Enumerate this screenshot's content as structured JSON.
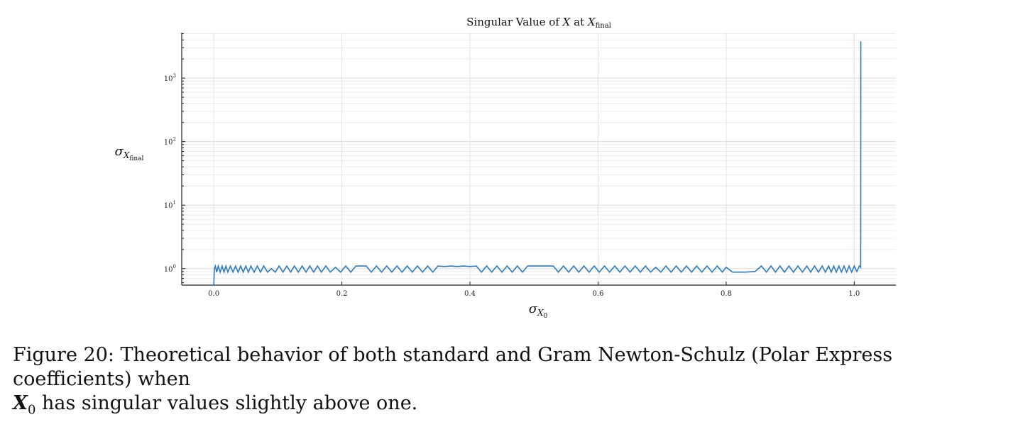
{
  "chart_data": {
    "type": "line",
    "title": {
      "prefix": "Singular Value of",
      "var": "X",
      "mid": "at",
      "var2": "X",
      "sub": "final"
    },
    "xlabel": {
      "symbol": "σ",
      "sub_var": "X",
      "sub_sub": "0"
    },
    "ylabel": {
      "symbol": "σ",
      "sub_var": "X",
      "sub_sub": "final"
    },
    "x_ticks": [
      "0.0",
      "0.2",
      "0.4",
      "0.6",
      "0.8",
      "1.0"
    ],
    "x_tick_values": [
      0.0,
      0.2,
      0.4,
      0.6,
      0.8,
      1.0
    ],
    "y_ticks": [
      {
        "base": "10",
        "exp": "0",
        "value": 1
      },
      {
        "base": "10",
        "exp": "1",
        "value": 10
      },
      {
        "base": "10",
        "exp": "2",
        "value": 100
      },
      {
        "base": "10",
        "exp": "3",
        "value": 1000
      }
    ],
    "y_scale": "log",
    "xlim": [
      -0.05,
      1.065
    ],
    "ylim": [
      0.55,
      5200
    ],
    "grid": true,
    "legend": "none",
    "color": "#2e7bbd",
    "series": [
      {
        "points": [
          [
            0.0,
            0.55
          ],
          [
            0.001,
            1.0
          ],
          [
            0.0025,
            1.1
          ],
          [
            0.0045,
            0.88
          ],
          [
            0.007,
            1.1
          ],
          [
            0.01,
            0.88
          ],
          [
            0.013,
            1.1
          ],
          [
            0.016,
            0.88
          ],
          [
            0.019,
            1.1
          ],
          [
            0.022,
            0.88
          ],
          [
            0.026,
            1.1
          ],
          [
            0.03,
            0.88
          ],
          [
            0.034,
            1.1
          ],
          [
            0.038,
            0.88
          ],
          [
            0.042,
            1.1
          ],
          [
            0.046,
            0.88
          ],
          [
            0.05,
            1.1
          ],
          [
            0.054,
            0.88
          ],
          [
            0.058,
            1.1
          ],
          [
            0.063,
            0.88
          ],
          [
            0.068,
            1.1
          ],
          [
            0.073,
            0.88
          ],
          [
            0.078,
            1.1
          ],
          [
            0.084,
            0.88
          ],
          [
            0.09,
            1.0
          ],
          [
            0.096,
            0.88
          ],
          [
            0.102,
            1.1
          ],
          [
            0.108,
            0.88
          ],
          [
            0.114,
            1.1
          ],
          [
            0.12,
            0.88
          ],
          [
            0.126,
            1.1
          ],
          [
            0.132,
            0.88
          ],
          [
            0.138,
            1.1
          ],
          [
            0.144,
            0.88
          ],
          [
            0.15,
            1.1
          ],
          [
            0.156,
            0.88
          ],
          [
            0.162,
            1.1
          ],
          [
            0.168,
            0.88
          ],
          [
            0.175,
            1.1
          ],
          [
            0.182,
            0.88
          ],
          [
            0.19,
            1.05
          ],
          [
            0.198,
            0.88
          ],
          [
            0.206,
            1.1
          ],
          [
            0.214,
            0.88
          ],
          [
            0.222,
            1.1
          ],
          [
            0.23,
            1.1
          ],
          [
            0.238,
            1.1
          ],
          [
            0.246,
            0.88
          ],
          [
            0.254,
            1.1
          ],
          [
            0.262,
            0.88
          ],
          [
            0.27,
            1.1
          ],
          [
            0.278,
            0.88
          ],
          [
            0.286,
            1.1
          ],
          [
            0.294,
            0.88
          ],
          [
            0.302,
            1.1
          ],
          [
            0.31,
            0.88
          ],
          [
            0.318,
            1.1
          ],
          [
            0.326,
            0.88
          ],
          [
            0.334,
            1.1
          ],
          [
            0.342,
            0.88
          ],
          [
            0.35,
            1.1
          ],
          [
            0.36,
            1.08
          ],
          [
            0.37,
            1.1
          ],
          [
            0.38,
            1.08
          ],
          [
            0.39,
            1.1
          ],
          [
            0.4,
            1.08
          ],
          [
            0.41,
            1.1
          ],
          [
            0.418,
            0.88
          ],
          [
            0.426,
            1.1
          ],
          [
            0.434,
            0.88
          ],
          [
            0.442,
            1.1
          ],
          [
            0.45,
            0.88
          ],
          [
            0.458,
            1.1
          ],
          [
            0.466,
            0.88
          ],
          [
            0.474,
            1.1
          ],
          [
            0.482,
            0.88
          ],
          [
            0.49,
            1.1
          ],
          [
            0.5,
            1.1
          ],
          [
            0.51,
            1.1
          ],
          [
            0.52,
            1.1
          ],
          [
            0.53,
            1.1
          ],
          [
            0.538,
            0.88
          ],
          [
            0.546,
            1.1
          ],
          [
            0.554,
            0.88
          ],
          [
            0.562,
            1.1
          ],
          [
            0.57,
            0.88
          ],
          [
            0.578,
            1.1
          ],
          [
            0.586,
            0.88
          ],
          [
            0.594,
            1.1
          ],
          [
            0.602,
            0.88
          ],
          [
            0.61,
            1.1
          ],
          [
            0.618,
            0.88
          ],
          [
            0.626,
            1.1
          ],
          [
            0.634,
            0.88
          ],
          [
            0.642,
            1.1
          ],
          [
            0.65,
            0.88
          ],
          [
            0.658,
            1.1
          ],
          [
            0.666,
            0.88
          ],
          [
            0.674,
            1.1
          ],
          [
            0.682,
            0.88
          ],
          [
            0.69,
            1.05
          ],
          [
            0.698,
            0.88
          ],
          [
            0.706,
            1.1
          ],
          [
            0.714,
            0.88
          ],
          [
            0.722,
            1.1
          ],
          [
            0.73,
            0.88
          ],
          [
            0.738,
            1.1
          ],
          [
            0.746,
            0.88
          ],
          [
            0.754,
            1.1
          ],
          [
            0.762,
            0.88
          ],
          [
            0.77,
            1.1
          ],
          [
            0.778,
            0.88
          ],
          [
            0.786,
            1.1
          ],
          [
            0.794,
            0.88
          ],
          [
            0.8,
            1.05
          ],
          [
            0.81,
            0.88
          ],
          [
            0.83,
            0.88
          ],
          [
            0.845,
            0.9
          ],
          [
            0.855,
            1.1
          ],
          [
            0.863,
            0.88
          ],
          [
            0.87,
            1.1
          ],
          [
            0.877,
            0.88
          ],
          [
            0.884,
            1.1
          ],
          [
            0.891,
            0.88
          ],
          [
            0.898,
            1.1
          ],
          [
            0.905,
            0.88
          ],
          [
            0.912,
            1.1
          ],
          [
            0.919,
            0.88
          ],
          [
            0.926,
            1.1
          ],
          [
            0.932,
            0.88
          ],
          [
            0.938,
            1.1
          ],
          [
            0.944,
            0.88
          ],
          [
            0.95,
            1.1
          ],
          [
            0.955,
            0.88
          ],
          [
            0.96,
            1.1
          ],
          [
            0.964,
            0.88
          ],
          [
            0.968,
            1.1
          ],
          [
            0.972,
            0.88
          ],
          [
            0.976,
            1.1
          ],
          [
            0.98,
            0.88
          ],
          [
            0.984,
            1.1
          ],
          [
            0.988,
            0.88
          ],
          [
            0.992,
            1.1
          ],
          [
            0.996,
            0.88
          ],
          [
            1.0,
            1.1
          ],
          [
            1.004,
            0.9
          ],
          [
            1.008,
            1.1
          ],
          [
            1.01,
            1.05
          ],
          [
            1.0102,
            3800
          ]
        ]
      }
    ]
  },
  "caption": {
    "text": "Figure 20: Theoretical behavior of both standard and Gram Newton-Schulz (Polar Express coefficients) when",
    "bold_symbol": "X",
    "bold_sub": "0",
    "rest": " has singular values slightly above one."
  }
}
